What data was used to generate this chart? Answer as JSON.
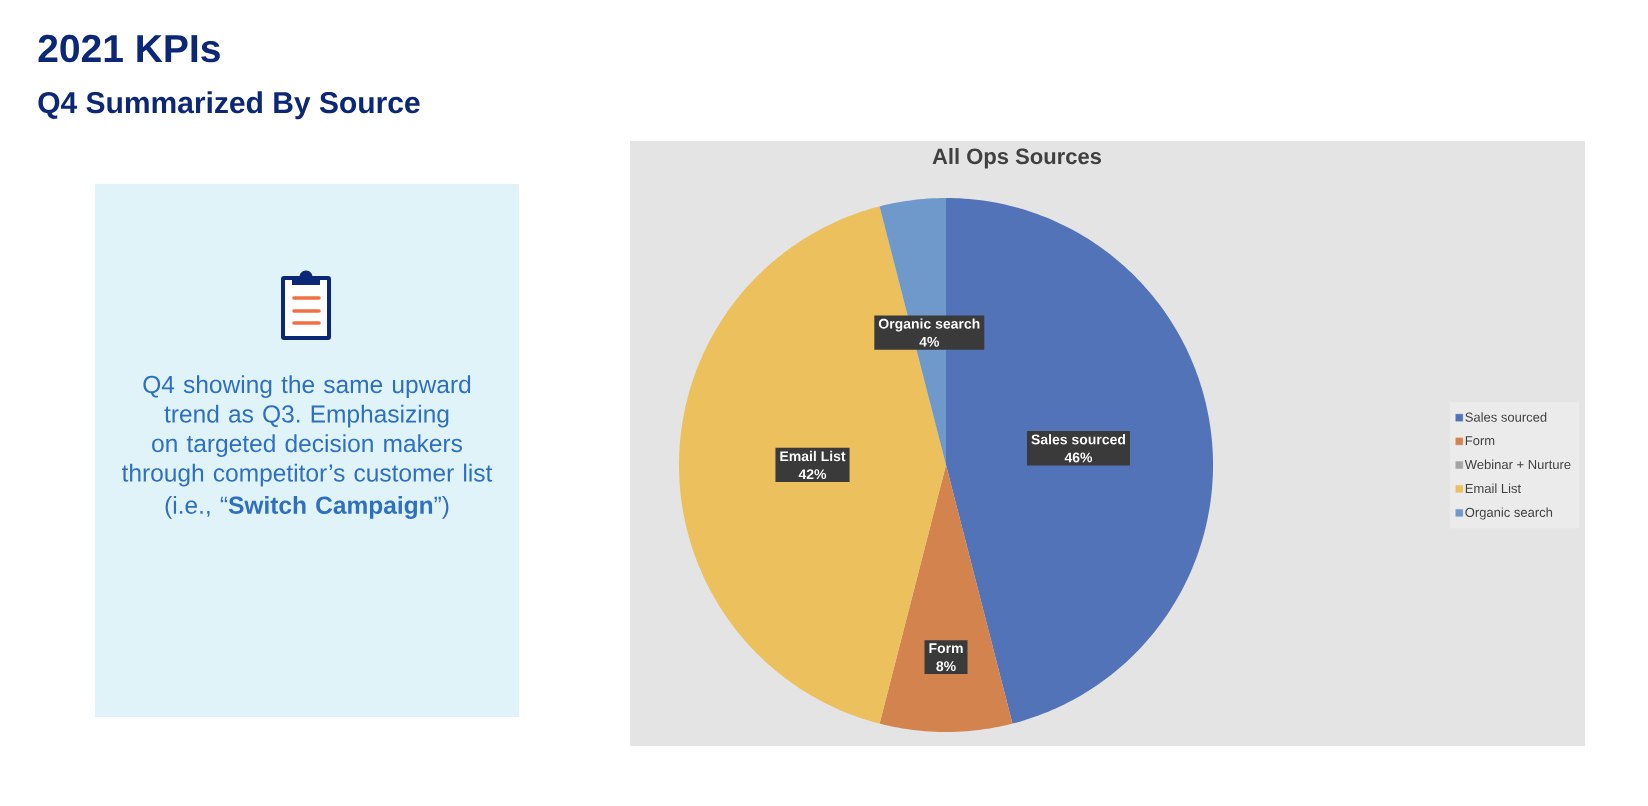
{
  "chart_data": [
    {
      "type": "other",
      "title": "2021 KPIs",
      "subtitle": "Q4 Summarized By Source",
      "annotations": [
        "Q4 showing the same upward trend as Q3. Emphasizing on targeted decision makers through competitor’s customer list",
        "(i.e., “**Switch Campaign**”)"
      ]
    },
    {
      "type": "pie",
      "title": "All Ops Sources",
      "categories": [
        "Sales sourced",
        "Form",
        "Webinar + Nurture",
        "Email List",
        "Organic search"
      ],
      "values": [
        46,
        8,
        0,
        42,
        4
      ],
      "colors": [
        "#5273b8",
        "#d3844e",
        "#a5a5a5",
        "#ecc05c",
        "#6f99cb"
      ],
      "value_labels": [
        "46%",
        "8%",
        null,
        "42%",
        "4%"
      ],
      "legend": "right"
    }
  ]
}
